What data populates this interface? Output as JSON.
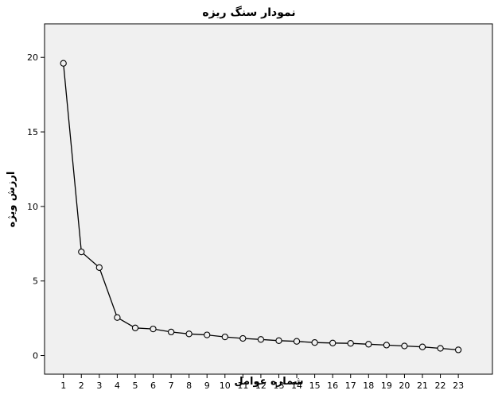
{
  "chart_data": {
    "type": "line",
    "title": "نمودار سنگ ریزه",
    "xlabel": "شماره عوامل",
    "ylabel": "ارزش ویژه",
    "x": [
      1,
      2,
      3,
      4,
      5,
      6,
      7,
      8,
      9,
      10,
      11,
      12,
      13,
      14,
      15,
      16,
      17,
      18,
      19,
      20,
      21,
      22,
      23
    ],
    "values": [
      19.6,
      6.95,
      5.9,
      2.55,
      1.85,
      1.78,
      1.58,
      1.45,
      1.38,
      1.25,
      1.15,
      1.08,
      1.0,
      0.95,
      0.87,
      0.84,
      0.82,
      0.76,
      0.7,
      0.64,
      0.58,
      0.48,
      0.38
    ],
    "xticks": [
      "1",
      "2",
      "3",
      "4",
      "5",
      "6",
      "7",
      "8",
      "9",
      "10",
      "11",
      "12",
      "13",
      "14",
      "15",
      "16",
      "17",
      "18",
      "19",
      "20",
      "21",
      "22",
      "23"
    ],
    "yticks": [
      "0",
      "5",
      "10",
      "15",
      "20"
    ],
    "ylim": [
      -1.25,
      22.25
    ],
    "xlim": [
      -0.05,
      24.9
    ],
    "grid": false,
    "marker": "open-circle",
    "colors": {
      "plot_background": "#f0f0f0",
      "line": "#000000",
      "marker_fill": "#f0f0f0"
    }
  }
}
